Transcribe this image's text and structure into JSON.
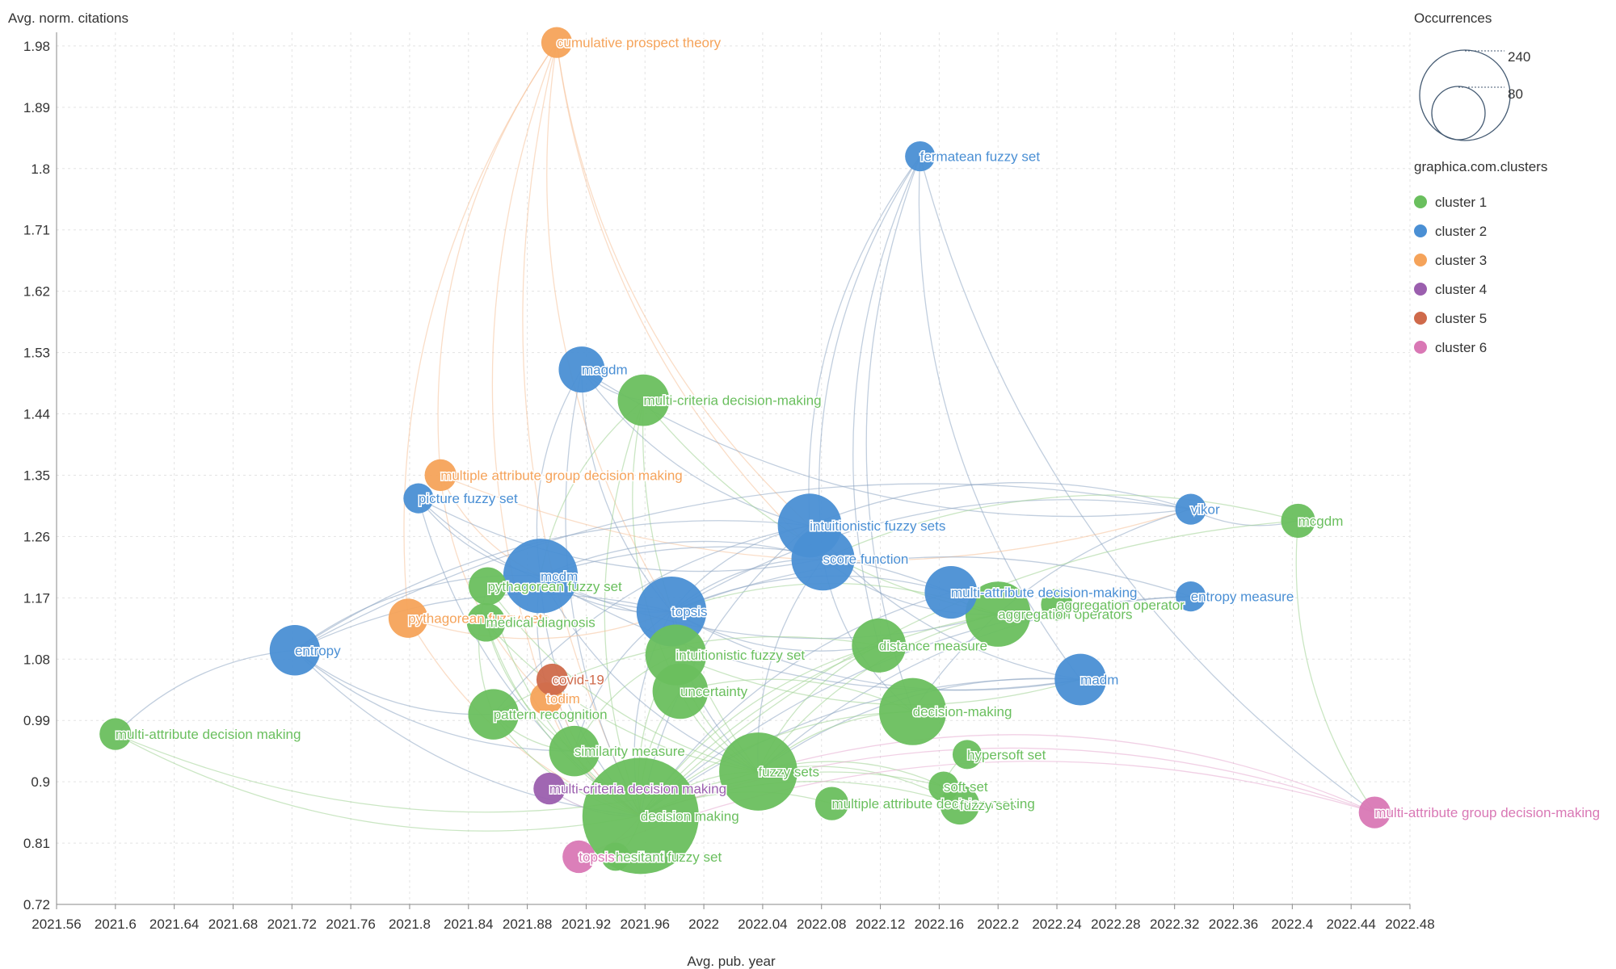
{
  "chart_data": {
    "type": "scatter",
    "xlabel": "Avg. pub. year",
    "ylabel": "Avg. norm. citations",
    "xlim": [
      2021.56,
      2022.48
    ],
    "ylim": [
      0.72,
      2.0
    ],
    "xticks": [
      "2021.56",
      "2021.6",
      "2021.64",
      "2021.68",
      "2021.72",
      "2021.76",
      "2021.8",
      "2021.84",
      "2021.88",
      "2021.92",
      "2021.96",
      "2022",
      "2022.04",
      "2022.08",
      "2022.12",
      "2022.16",
      "2022.2",
      "2022.24",
      "2022.28",
      "2022.32",
      "2022.36",
      "2022.4",
      "2022.44",
      "2022.48"
    ],
    "yticks": [
      "0.72",
      "0.81",
      "0.9",
      "0.99",
      "1.08",
      "1.17",
      "1.26",
      "1.35",
      "1.44",
      "1.53",
      "1.62",
      "1.71",
      "1.8",
      "1.89",
      "1.98"
    ],
    "grid": true,
    "legend": {
      "size_title": "Occurrences",
      "size_values": [
        {
          "label": "240",
          "value": 240
        },
        {
          "label": "80",
          "value": 80
        }
      ],
      "color_title": "graphica.com.clusters",
      "clusters": [
        {
          "name": "cluster 1",
          "color": "#6abf5e"
        },
        {
          "name": "cluster 2",
          "color": "#4a8fd4"
        },
        {
          "name": "cluster 3",
          "color": "#f5a35a"
        },
        {
          "name": "cluster 4",
          "color": "#9b5fae"
        },
        {
          "name": "cluster 5",
          "color": "#cf6a4b"
        },
        {
          "name": "cluster 6",
          "color": "#d978b5"
        }
      ]
    },
    "nodes": [
      {
        "label": "cumulative prospect theory",
        "x": 2021.9,
        "y": 1.985,
        "size": 18,
        "cluster": 3
      },
      {
        "label": "fermatean fuzzy set",
        "x": 2022.147,
        "y": 1.818,
        "size": 17,
        "cluster": 2
      },
      {
        "label": "magdm",
        "x": 2021.917,
        "y": 1.505,
        "size": 40,
        "cluster": 2
      },
      {
        "label": "multi-criteria decision-making",
        "x": 2021.959,
        "y": 1.46,
        "size": 50,
        "cluster": 1
      },
      {
        "label": "multiple attribute group decision making",
        "x": 2021.821,
        "y": 1.35,
        "size": 19,
        "cluster": 3
      },
      {
        "label": "picture fuzzy set",
        "x": 2021.806,
        "y": 1.316,
        "size": 17,
        "cluster": 2
      },
      {
        "label": "vikor",
        "x": 2022.331,
        "y": 1.3,
        "size": 18,
        "cluster": 2
      },
      {
        "label": "mcgdm",
        "x": 2022.404,
        "y": 1.283,
        "size": 22,
        "cluster": 1
      },
      {
        "label": "intuitionistic fuzzy sets",
        "x": 2022.072,
        "y": 1.276,
        "size": 77,
        "cluster": 2
      },
      {
        "label": "score function",
        "x": 2022.081,
        "y": 1.227,
        "size": 75,
        "cluster": 2
      },
      {
        "label": "mcdm",
        "x": 2021.889,
        "y": 1.202,
        "size": 105,
        "cluster": 2
      },
      {
        "label": "pythagorean fuzzy set",
        "x": 2021.853,
        "y": 1.187,
        "size": 27,
        "cluster": 1
      },
      {
        "label": "multi-attribute decision-making",
        "x": 2022.168,
        "y": 1.178,
        "size": 52,
        "cluster": 2
      },
      {
        "label": "entropy measure",
        "x": 2022.331,
        "y": 1.172,
        "size": 17,
        "cluster": 2
      },
      {
        "label": "aggregation operators",
        "x": 2022.2,
        "y": 1.146,
        "size": 80,
        "cluster": 1
      },
      {
        "label": "aggregation operator",
        "x": 2022.24,
        "y": 1.16,
        "size": 19,
        "cluster": 1
      },
      {
        "label": "topsis",
        "x": 2021.978,
        "y": 1.15,
        "size": 92,
        "cluster": 2
      },
      {
        "label": "pythagorean fuzzy sets",
        "x": 2021.799,
        "y": 1.14,
        "size": 29,
        "cluster": 3
      },
      {
        "label": "medical diagnosis",
        "x": 2021.852,
        "y": 1.134,
        "size": 28,
        "cluster": 1
      },
      {
        "label": "entropy",
        "x": 2021.722,
        "y": 1.093,
        "size": 48,
        "cluster": 2
      },
      {
        "label": "distance measure",
        "x": 2022.119,
        "y": 1.1,
        "size": 55,
        "cluster": 1
      },
      {
        "label": "intuitionistic fuzzy set",
        "x": 2021.981,
        "y": 1.086,
        "size": 70,
        "cluster": 1
      },
      {
        "label": "madm",
        "x": 2022.256,
        "y": 1.05,
        "size": 50,
        "cluster": 2
      },
      {
        "label": "covid-19",
        "x": 2021.897,
        "y": 1.05,
        "size": 19,
        "cluster": 5
      },
      {
        "label": "todim",
        "x": 2021.893,
        "y": 1.022,
        "size": 20,
        "cluster": 3
      },
      {
        "label": "uncertainty",
        "x": 2021.984,
        "y": 1.033,
        "size": 58,
        "cluster": 1
      },
      {
        "label": "decision-making",
        "x": 2022.142,
        "y": 1.003,
        "size": 85,
        "cluster": 1
      },
      {
        "label": "pattern recognition",
        "x": 2021.857,
        "y": 0.999,
        "size": 48,
        "cluster": 1
      },
      {
        "label": "multi-attribute decision making",
        "x": 2021.6,
        "y": 0.97,
        "size": 19,
        "cluster": 1
      },
      {
        "label": "hypersoft set",
        "x": 2022.179,
        "y": 0.94,
        "size": 16,
        "cluster": 1
      },
      {
        "label": "similarity measure",
        "x": 2021.912,
        "y": 0.945,
        "size": 48,
        "cluster": 1
      },
      {
        "label": "fuzzy sets",
        "x": 2022.037,
        "y": 0.915,
        "size": 115,
        "cluster": 1
      },
      {
        "label": "soft set",
        "x": 2022.163,
        "y": 0.893,
        "size": 17,
        "cluster": 1
      },
      {
        "label": "multi-criteria decision making",
        "x": 2021.895,
        "y": 0.89,
        "size": 19,
        "cluster": 4
      },
      {
        "label": "multiple attribute decision making",
        "x": 2022.087,
        "y": 0.868,
        "size": 21,
        "cluster": 1
      },
      {
        "label": "fuzzy set",
        "x": 2022.174,
        "y": 0.866,
        "size": 29,
        "cluster": 1
      },
      {
        "label": "decision making",
        "x": 2021.957,
        "y": 0.85,
        "size": 255,
        "cluster": 1
      },
      {
        "label": "multi-attribute group decision-making",
        "x": 2022.456,
        "y": 0.855,
        "size": 19,
        "cluster": 6
      },
      {
        "label": "topsis method",
        "x": 2021.915,
        "y": 0.79,
        "size": 20,
        "cluster": 6
      },
      {
        "label": "hesitant fuzzy set",
        "x": 2021.94,
        "y": 0.79,
        "size": 15,
        "cluster": 1
      }
    ],
    "links": [
      [
        "cumulative prospect theory",
        "multiple attribute group decision making"
      ],
      [
        "cumulative prospect theory",
        "todim"
      ],
      [
        "cumulative prospect theory",
        "pythagorean fuzzy sets"
      ],
      [
        "cumulative prospect theory",
        "topsis"
      ],
      [
        "cumulative prospect theory",
        "decision making"
      ],
      [
        "cumulative prospect theory",
        "score function"
      ],
      [
        "cumulative prospect theory",
        "intuitionistic fuzzy sets"
      ],
      [
        "fermatean fuzzy set",
        "intuitionistic fuzzy sets"
      ],
      [
        "fermatean fuzzy set",
        "score function"
      ],
      [
        "fermatean fuzzy set",
        "multi-attribute group decision-making"
      ],
      [
        "fermatean fuzzy set",
        "distance measure"
      ],
      [
        "fermatean fuzzy set",
        "decision-making"
      ],
      [
        "fermatean fuzzy set",
        "madm"
      ],
      [
        "magdm",
        "multi-criteria decision-making"
      ],
      [
        "magdm",
        "topsis"
      ],
      [
        "magdm",
        "intuitionistic fuzzy sets"
      ],
      [
        "magdm",
        "mcdm"
      ],
      [
        "magdm",
        "decision making"
      ],
      [
        "magdm",
        "vikor"
      ],
      [
        "multi-criteria decision-making",
        "decision making"
      ],
      [
        "multi-criteria decision-making",
        "fuzzy sets"
      ],
      [
        "multi-criteria decision-making",
        "mcdm"
      ],
      [
        "multi-criteria decision-making",
        "aggregation operators"
      ],
      [
        "multi-criteria decision-making",
        "uncertainty"
      ],
      [
        "multiple attribute group decision making",
        "mcdm"
      ],
      [
        "multiple attribute group decision making",
        "todim"
      ],
      [
        "multiple attribute group decision making",
        "vikor"
      ],
      [
        "picture fuzzy set",
        "topsis"
      ],
      [
        "picture fuzzy set",
        "mcdm"
      ],
      [
        "picture fuzzy set",
        "decision making"
      ],
      [
        "picture fuzzy set",
        "score function"
      ],
      [
        "vikor",
        "intuitionistic fuzzy sets"
      ],
      [
        "vikor",
        "mcgdm"
      ],
      [
        "vikor",
        "topsis"
      ],
      [
        "vikor",
        "entropy"
      ],
      [
        "vikor",
        "decision-making"
      ],
      [
        "mcgdm",
        "score function"
      ],
      [
        "mcgdm",
        "decision making"
      ],
      [
        "mcgdm",
        "multi-attribute group decision-making"
      ],
      [
        "intuitionistic fuzzy sets",
        "topsis"
      ],
      [
        "intuitionistic fuzzy sets",
        "decision making"
      ],
      [
        "intuitionistic fuzzy sets",
        "entropy"
      ],
      [
        "intuitionistic fuzzy sets",
        "madm"
      ],
      [
        "intuitionistic fuzzy sets",
        "pattern recognition"
      ],
      [
        "score function",
        "mcdm"
      ],
      [
        "score function",
        "topsis"
      ],
      [
        "score function",
        "fuzzy sets"
      ],
      [
        "score function",
        "aggregation operators"
      ],
      [
        "score function",
        "decision-making"
      ],
      [
        "mcdm",
        "topsis"
      ],
      [
        "mcdm",
        "decision making"
      ],
      [
        "mcdm",
        "fuzzy sets"
      ],
      [
        "mcdm",
        "aggregation operators"
      ],
      [
        "mcdm",
        "entropy"
      ],
      [
        "mcdm",
        "madm"
      ],
      [
        "mcdm",
        "similarity measure"
      ],
      [
        "pythagorean fuzzy set",
        "decision making"
      ],
      [
        "pythagorean fuzzy set",
        "pattern recognition"
      ],
      [
        "pythagorean fuzzy set",
        "fuzzy sets"
      ],
      [
        "multi-attribute decision-making",
        "aggregation operators"
      ],
      [
        "multi-attribute decision-making",
        "topsis"
      ],
      [
        "multi-attribute decision-making",
        "decision making"
      ],
      [
        "multi-attribute decision-making",
        "mcdm"
      ],
      [
        "entropy measure",
        "topsis"
      ],
      [
        "entropy measure",
        "decision making"
      ],
      [
        "entropy measure",
        "fuzzy sets"
      ],
      [
        "aggregation operators",
        "decision making"
      ],
      [
        "aggregation operators",
        "fuzzy sets"
      ],
      [
        "aggregation operators",
        "topsis"
      ],
      [
        "aggregation operators",
        "aggregation operator"
      ],
      [
        "topsis",
        "decision making"
      ],
      [
        "topsis",
        "fuzzy sets"
      ],
      [
        "topsis",
        "entropy"
      ],
      [
        "topsis",
        "similarity measure"
      ],
      [
        "topsis",
        "madm"
      ],
      [
        "topsis",
        "distance measure"
      ],
      [
        "pythagorean fuzzy sets",
        "decision making"
      ],
      [
        "pythagorean fuzzy sets",
        "topsis"
      ],
      [
        "medical diagnosis",
        "similarity measure"
      ],
      [
        "medical diagnosis",
        "decision making"
      ],
      [
        "medical diagnosis",
        "fuzzy sets"
      ],
      [
        "entropy",
        "decision making"
      ],
      [
        "entropy",
        "similarity measure"
      ],
      [
        "entropy",
        "multi-attribute decision making"
      ],
      [
        "entropy",
        "pattern recognition"
      ],
      [
        "distance measure",
        "decision making"
      ],
      [
        "distance measure",
        "fuzzy sets"
      ],
      [
        "distance measure",
        "pattern recognition"
      ],
      [
        "intuitionistic fuzzy set",
        "decision making"
      ],
      [
        "intuitionistic fuzzy set",
        "fuzzy sets"
      ],
      [
        "intuitionistic fuzzy set",
        "similarity measure"
      ],
      [
        "intuitionistic fuzzy set",
        "madm"
      ],
      [
        "madm",
        "decision making"
      ],
      [
        "madm",
        "fuzzy sets"
      ],
      [
        "uncertainty",
        "decision making"
      ],
      [
        "uncertainty",
        "fuzzy sets"
      ],
      [
        "decision-making",
        "decision making"
      ],
      [
        "decision-making",
        "fuzzy sets"
      ],
      [
        "decision-making",
        "uncertainty"
      ],
      [
        "pattern recognition",
        "decision making"
      ],
      [
        "pattern recognition",
        "similarity measure"
      ],
      [
        "multi-attribute decision making",
        "decision making"
      ],
      [
        "multi-attribute decision making",
        "fuzzy sets"
      ],
      [
        "similarity measure",
        "decision making"
      ],
      [
        "fuzzy sets",
        "decision making"
      ],
      [
        "soft set",
        "decision making"
      ],
      [
        "soft set",
        "fuzzy sets"
      ],
      [
        "hypersoft set",
        "soft set"
      ],
      [
        "fuzzy set",
        "decision making"
      ],
      [
        "fuzzy set",
        "fuzzy sets"
      ],
      [
        "multi-criteria decision making",
        "decision making"
      ],
      [
        "multiple attribute decision making",
        "decision making"
      ],
      [
        "multi-attribute group decision-making",
        "decision making"
      ],
      [
        "multi-attribute group decision-making",
        "topsis method"
      ],
      [
        "multi-attribute group decision-making",
        "fuzzy sets"
      ],
      [
        "topsis method",
        "decision making"
      ],
      [
        "hesitant fuzzy set",
        "decision making"
      ],
      [
        "covid-19",
        "decision making"
      ],
      [
        "todim",
        "decision making"
      ]
    ]
  }
}
